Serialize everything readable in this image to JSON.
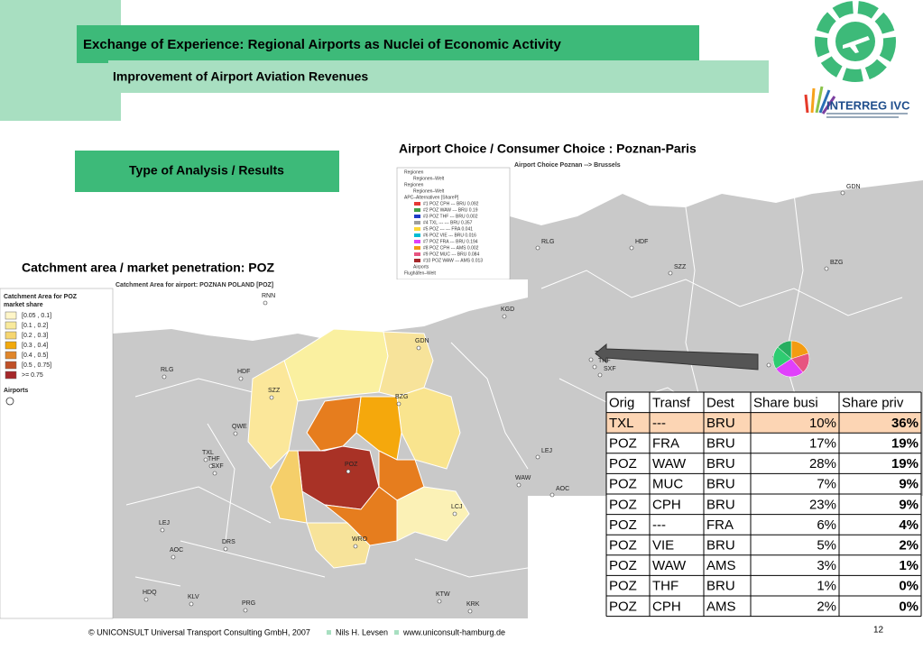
{
  "header": {
    "title": "Exchange of Experience: Regional Airports as Nuclei of Economic Activity",
    "subtitle": "Improvement of Airport Aviation Revenues",
    "logo_text": "INTERREG IVC"
  },
  "section_label": "Type of Analysis / Results",
  "catchment": {
    "heading": "Catchment area / market penetration: POZ",
    "map_title": "Catchment Area for airport: POZNAN POLAND [POZ]",
    "legend_title": "Catchment Area for POZ",
    "legend_subtitle": "market share",
    "legend_items": [
      "[0.05 , 0.1]",
      "[0.1 , 0.2]",
      "[0.2 , 0.3]",
      "[0.3 , 0.4]",
      "[0.4 , 0.5]",
      "[0.5 , 0.75]",
      ">= 0.75"
    ],
    "airports_label": "Airports",
    "cities": [
      "RNN",
      "KGD",
      "GDN",
      "BZG",
      "RLG",
      "HDF",
      "SZZ",
      "QWE",
      "TXL",
      "THF",
      "SXF",
      "POZ",
      "LCJ",
      "WAW",
      "LEJ",
      "AOC",
      "DRS",
      "WRO",
      "HDQ",
      "KLV",
      "PRG",
      "KTW",
      "KRK"
    ]
  },
  "choice": {
    "heading": "Airport Choice / Consumer Choice : Poznan-Paris",
    "map_title": "Airport Choice Poznan --> Brussels",
    "legend_lines": [
      "Regionen",
      "Regionen–Welt",
      "Regionen",
      "Regionen–Welt",
      "APC–Alternativen [ShareP]",
      "#1 POZ CPH --- BRU 0.092",
      "#2 POZ WAW --- BRU 0.19",
      "#3 POZ THF --- BRU 0.002",
      "#4 TXL --- --- BRU 0.357",
      "#5 POZ --- --- FRA 0.041",
      "#6 POZ VIE --- BRU 0.016",
      "#7 POZ FRA --- BRU 0.194",
      "#8 POZ CPH --- AMS 0.002",
      "#9 POZ MUC --- BRU 0.084",
      "#10 POZ WAW --- AMS 0.013",
      "Airports",
      "Flughäfen–Welt"
    ],
    "cities": [
      "GDN",
      "RLG",
      "HDF",
      "SZZ",
      "BZG",
      "TXL",
      "THF",
      "SXF",
      "LEJ",
      "AOC",
      "POZ"
    ]
  },
  "table": {
    "columns": [
      "Orig",
      "Transf",
      "Dest",
      "Share busi",
      "Share priv"
    ],
    "rows": [
      [
        "TXL",
        "---",
        "BRU",
        "10%",
        "36%"
      ],
      [
        "POZ",
        "FRA",
        "BRU",
        "17%",
        "19%"
      ],
      [
        "POZ",
        "WAW",
        "BRU",
        "28%",
        "19%"
      ],
      [
        "POZ",
        "MUC",
        "BRU",
        "7%",
        "9%"
      ],
      [
        "POZ",
        "CPH",
        "BRU",
        "23%",
        "9%"
      ],
      [
        "POZ",
        "---",
        "FRA",
        "6%",
        "4%"
      ],
      [
        "POZ",
        "VIE",
        "BRU",
        "5%",
        "2%"
      ],
      [
        "POZ",
        "WAW",
        "AMS",
        "3%",
        "1%"
      ],
      [
        "POZ",
        "THF",
        "BRU",
        "1%",
        "0%"
      ],
      [
        "POZ",
        "CPH",
        "AMS",
        "2%",
        "0%"
      ]
    ]
  },
  "footer": {
    "copyright": "© UNICONSULT Universal Transport Consulting GmbH, 2007",
    "author": "Nils H. Levsen",
    "website": "www.uniconsult-hamburg.de",
    "page_number": "12"
  }
}
